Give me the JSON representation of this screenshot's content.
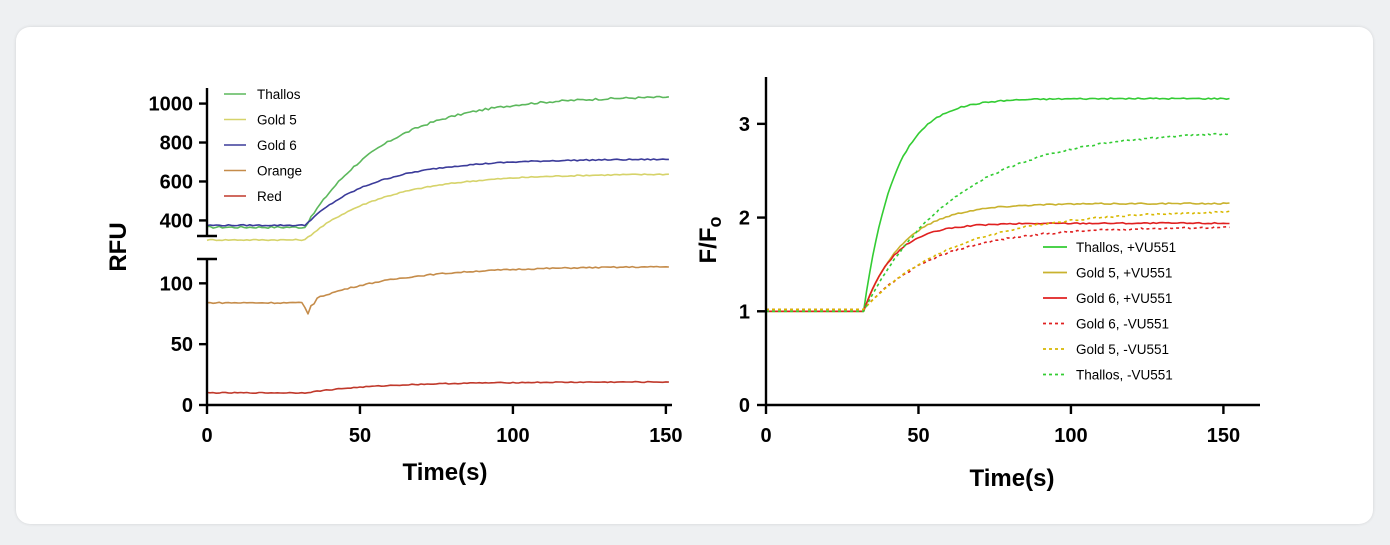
{
  "chart_data": [
    {
      "type": "line",
      "xlabel": "Time(s)",
      "ylabel": "RFU",
      "xlim": [
        0,
        152
      ],
      "x_ticks": [
        "0",
        "50",
        "100",
        "150"
      ],
      "broken_y_axis": true,
      "y_upper_segment": {
        "ylim": [
          320,
          1080
        ],
        "ticks": [
          "400",
          "600",
          "800",
          "1000"
        ]
      },
      "y_lower_segment": {
        "ylim": [
          0,
          120
        ],
        "ticks": [
          "0",
          "50",
          "100"
        ]
      },
      "legend_position": "top-left",
      "series": [
        {
          "name": "Thallos",
          "color": "#5cb85c",
          "segment": "upper",
          "baseline": 365,
          "plateau": 1040,
          "onset": 32,
          "tau": 26
        },
        {
          "name": "Gold 5",
          "color": "#d6d36a",
          "segment": "upper",
          "baseline": 300,
          "plateau": 640,
          "onset": 32,
          "tau": 25
        },
        {
          "name": "Gold 6",
          "color": "#3b3b9a",
          "segment": "upper",
          "baseline": 375,
          "plateau": 715,
          "onset": 32,
          "tau": 22
        },
        {
          "name": "Orange",
          "color": "#c58c4a",
          "segment": "lower",
          "baseline": 84,
          "plateau": 114,
          "onset": 32,
          "tau": 28
        },
        {
          "name": "Red",
          "color": "#c0392b",
          "segment": "lower",
          "baseline": 10,
          "plateau": 19,
          "onset": 32,
          "tau": 25
        }
      ]
    },
    {
      "type": "line",
      "xlabel": "Time(s)",
      "ylabel": "F/F",
      "ylabel_subscript": "o",
      "xlim": [
        0,
        162
      ],
      "ylim": [
        0,
        3.5
      ],
      "x_ticks": [
        "0",
        "50",
        "100",
        "150"
      ],
      "y_ticks": [
        "0",
        "1",
        "2",
        "3"
      ],
      "legend_position": "bottom-right",
      "series": [
        {
          "name": "Thallos, +VU551",
          "color": "#33cc33",
          "style": "solid",
          "baseline": 1.0,
          "plateau": 3.27,
          "onset": 32,
          "tau": 10
        },
        {
          "name": "Gold 5, +VU551",
          "color": "#c9b22e",
          "style": "solid",
          "baseline": 1.0,
          "plateau": 2.15,
          "onset": 32,
          "tau": 13
        },
        {
          "name": "Gold 6, +VU551",
          "color": "#e02020",
          "style": "solid",
          "baseline": 1.0,
          "plateau": 1.94,
          "onset": 32,
          "tau": 10
        },
        {
          "name": "Gold 6, -VU551",
          "color": "#e02020",
          "style": "dotted",
          "baseline": 1.02,
          "plateau": 1.9,
          "onset": 32,
          "tau": 24
        },
        {
          "name": "Gold 5, -VU551",
          "color": "#d8b800",
          "style": "dotted",
          "baseline": 1.02,
          "plateau": 2.08,
          "onset": 32,
          "tau": 30
        },
        {
          "name": "Thallos, -VU551",
          "color": "#33cc33",
          "style": "dotted",
          "baseline": 1.0,
          "plateau": 2.93,
          "onset": 32,
          "tau": 30
        }
      ]
    }
  ]
}
